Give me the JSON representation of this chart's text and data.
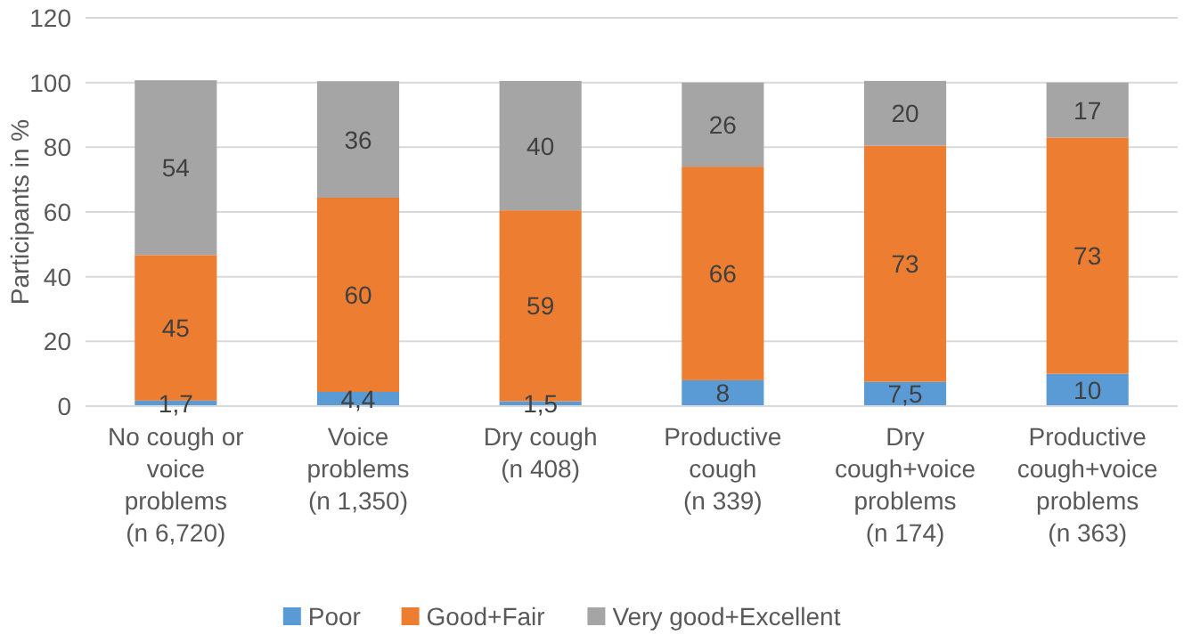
{
  "chart_data": {
    "type": "bar",
    "stacked": true,
    "ylabel": "Participants in %",
    "categories": [
      "No cough or voice problems (n 6,720)",
      "Voice problems (n 1,350)",
      "Dry cough (n 408)",
      "Productive cough (n 339)",
      "Dry cough+voice problems (n 174)",
      "Productive cough+voice problems (n 363)"
    ],
    "series": [
      {
        "name": "Poor",
        "color": "#5b9bd5",
        "values": [
          1.7,
          4.4,
          1.5,
          8,
          7.5,
          10
        ],
        "value_labels": [
          "1,7",
          "4,4",
          "1,5",
          "8",
          "7,5",
          "10"
        ]
      },
      {
        "name": "Good+Fair",
        "color": "#ed7d31",
        "values": [
          45,
          60,
          59,
          66,
          73,
          73
        ],
        "value_labels": [
          "45",
          "60",
          "59",
          "66",
          "73",
          "73"
        ]
      },
      {
        "name": "Very good+Excellent",
        "color": "#a5a5a5",
        "values": [
          54,
          36,
          40,
          26,
          20,
          17
        ],
        "value_labels": [
          "54",
          "36",
          "40",
          "26",
          "20",
          "17"
        ]
      }
    ],
    "ylim": [
      0,
      120
    ],
    "yticks": [
      0,
      20,
      40,
      60,
      80,
      100,
      120
    ],
    "grid": "y",
    "legend": "bottom"
  }
}
